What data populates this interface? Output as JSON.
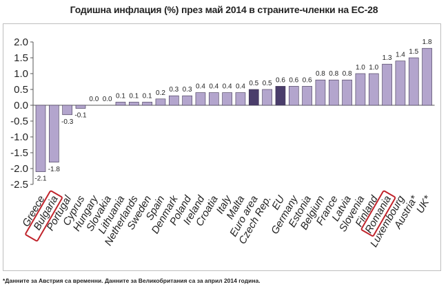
{
  "colors": {
    "bar": "#b3a5cd",
    "bar_highlight": "#4a3d6b",
    "bar_stroke": "#3c3350",
    "highlight_box": "#c0232b"
  },
  "chart_data": {
    "type": "bar",
    "title": "Годишна инфлация (%) през май 2014 в страните-членки на ЕС-28",
    "xlabel": "",
    "ylabel": "",
    "ylim": [
      -2.5,
      2.0
    ],
    "yticks": [
      "2.0",
      "1.5",
      "1.0",
      "0.5",
      "0.0",
      "-0.5",
      "-1.0",
      "-1.5",
      "-2.0",
      "-2.5"
    ],
    "grid": false,
    "legend": "none",
    "categories": [
      "Greece",
      "Bulgaria",
      "Portugal",
      "Cyprus",
      "Hungary",
      "Slovakia",
      "Lithuania",
      "Netherlands",
      "Sweden",
      "Spain",
      "Denmark",
      "Poland",
      "Ireland",
      "Croatia",
      "Italy",
      "Malta",
      "Euro area",
      "Czech Rep.",
      "EU",
      "Germany",
      "Estonia",
      "Belgium",
      "France",
      "Latvia",
      "Slovenia",
      "Finland",
      "Romania",
      "Luxembourg",
      "Austria*",
      "UK*"
    ],
    "values": [
      -2.1,
      -1.8,
      -0.3,
      -0.1,
      0.0,
      0.0,
      0.1,
      0.1,
      0.1,
      0.2,
      0.3,
      0.3,
      0.4,
      0.4,
      0.4,
      0.4,
      0.5,
      0.5,
      0.6,
      0.6,
      0.6,
      0.8,
      0.8,
      0.8,
      1.0,
      1.0,
      1.3,
      1.4,
      1.5,
      1.8
    ],
    "data_labels": [
      "-2.1",
      "-1.8",
      "-0.3",
      "-0.1",
      "0.0",
      "0.0",
      "0.1",
      "0.1",
      "0.1",
      "0.2",
      "0.3",
      "0.3",
      "0.4",
      "0.4",
      "0.4",
      "0.4",
      "0.5",
      "0.5",
      "0.6",
      "0.6",
      "0.6",
      "0.8",
      "0.8",
      "0.8",
      "1.0",
      "1.0",
      "1.3",
      "1.4",
      "1.5",
      "1.8"
    ],
    "highlighted_bars": [
      "Euro area",
      "EU"
    ],
    "boxed_labels": [
      "Bulgaria",
      "Romania"
    ]
  },
  "footnote": "*Данните за Австрия са временни. Данните за Великобритания са за април 2014 година."
}
